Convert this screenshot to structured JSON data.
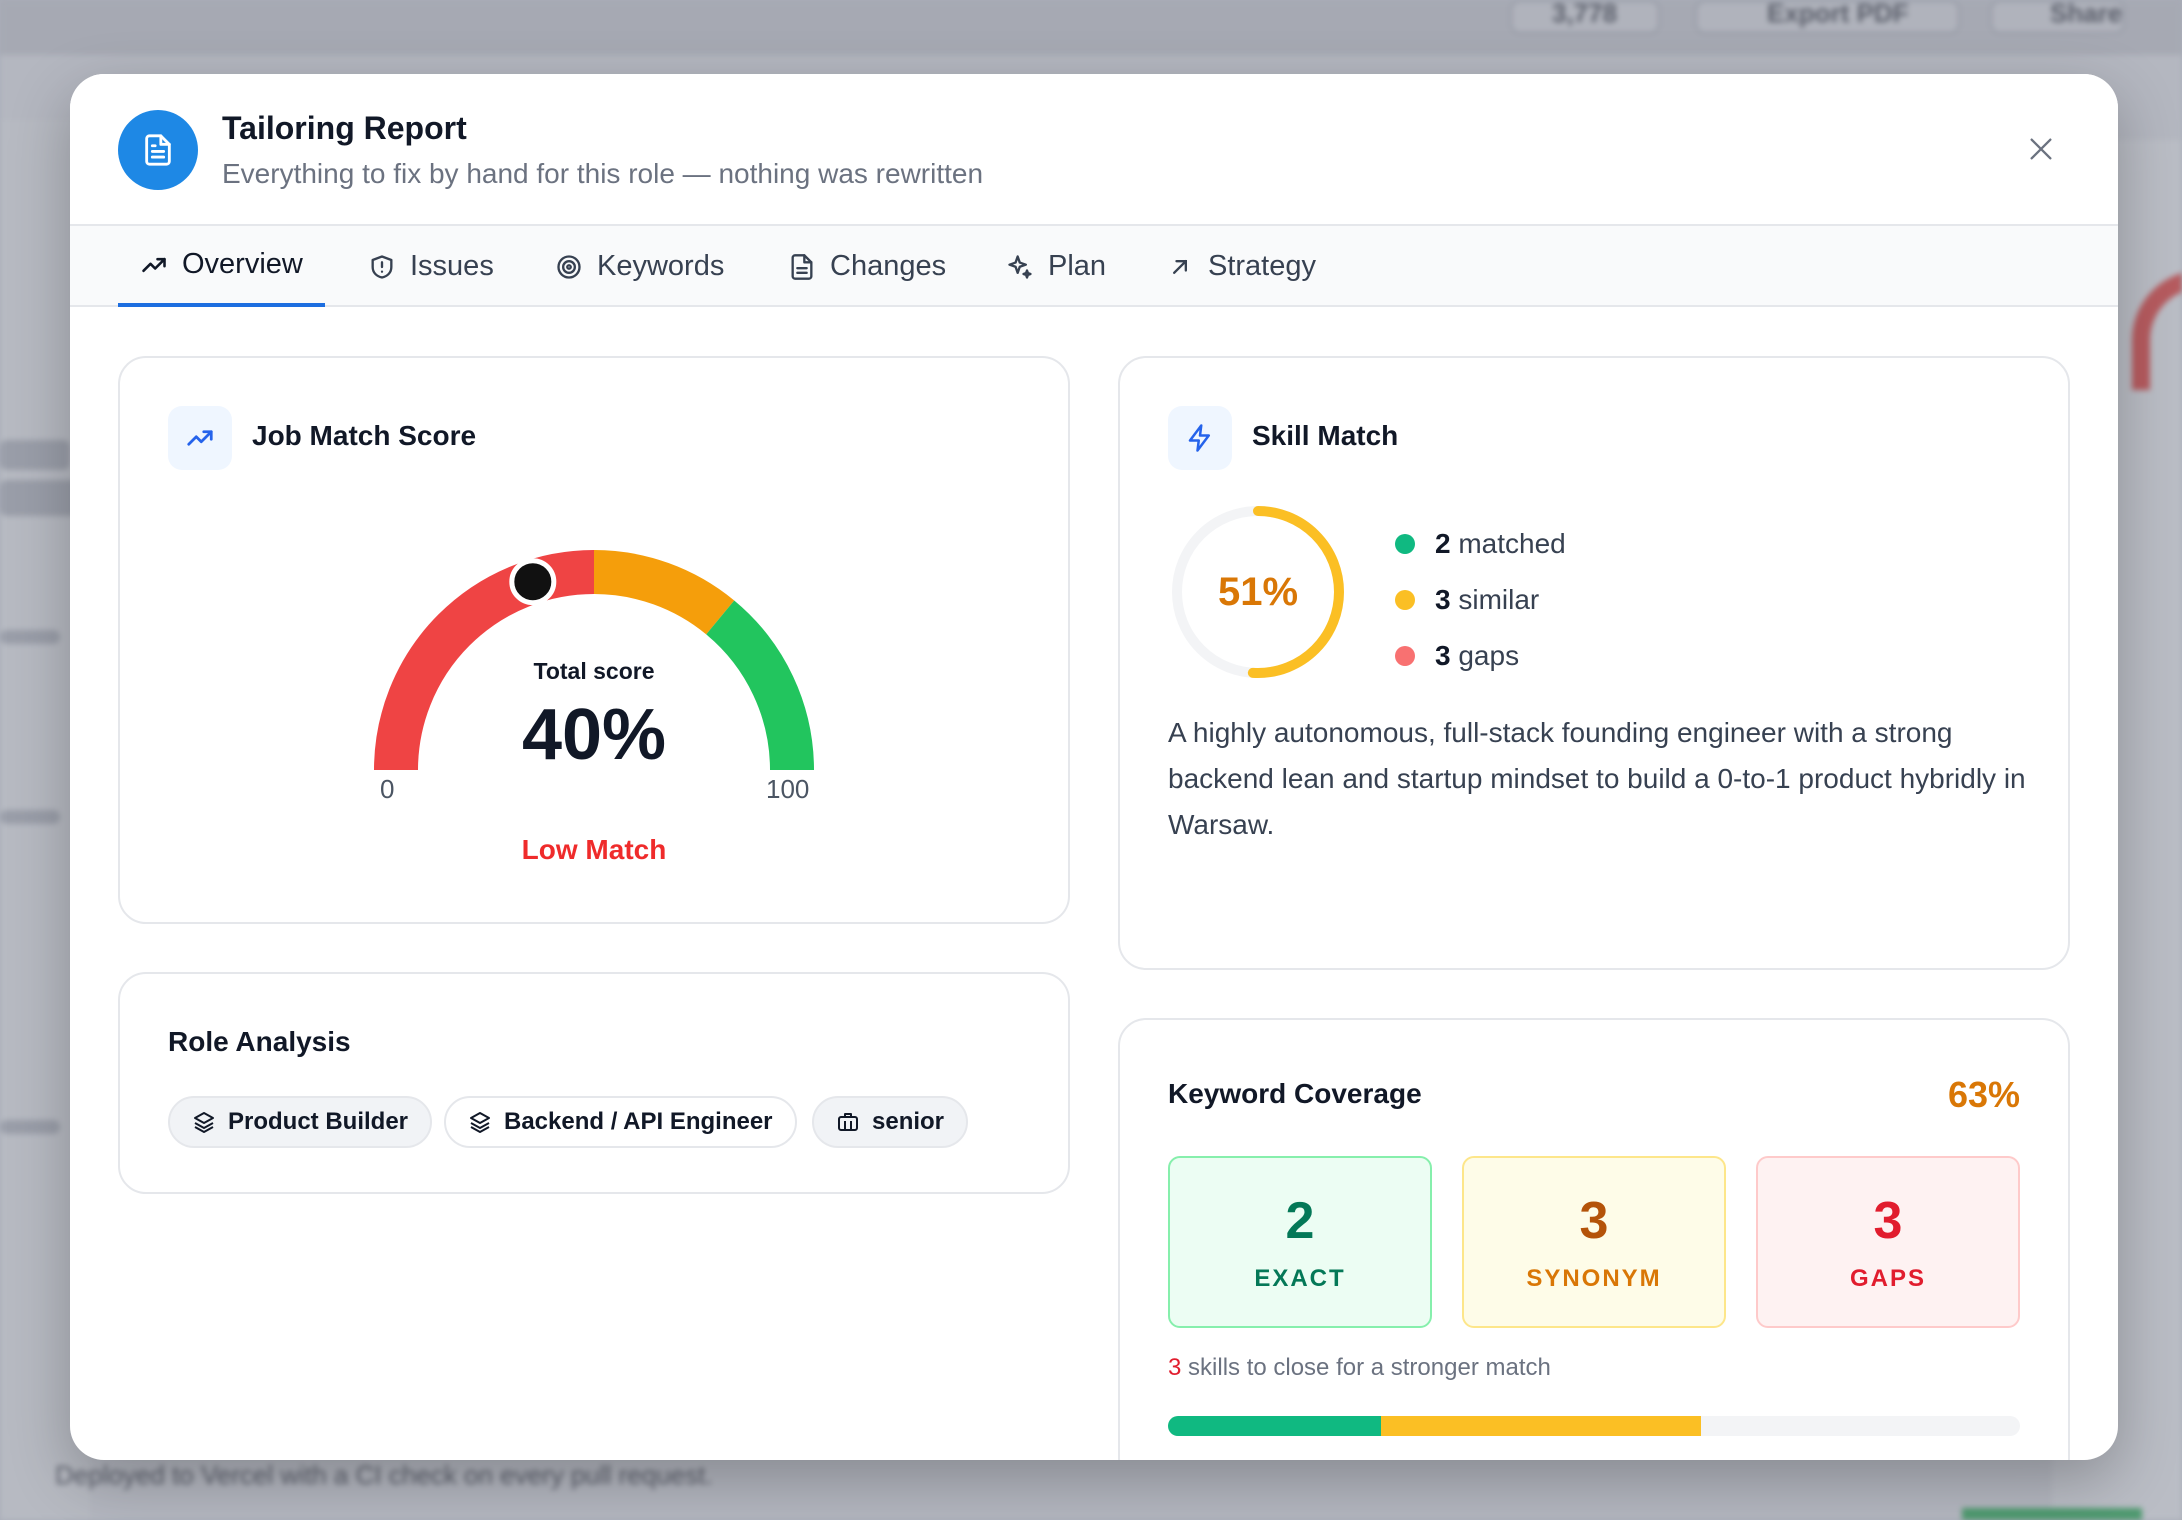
{
  "modal": {
    "title": "Tailoring Report",
    "subtitle": "Everything to fix by hand for this role — nothing was rewritten"
  },
  "tabs": [
    {
      "label": "Overview",
      "icon": "trending-up-icon",
      "active": true
    },
    {
      "label": "Issues",
      "icon": "shield-icon"
    },
    {
      "label": "Keywords",
      "icon": "target-icon"
    },
    {
      "label": "Changes",
      "icon": "document-icon"
    },
    {
      "label": "Plan",
      "icon": "sparkles-icon"
    },
    {
      "label": "Strategy",
      "icon": "arrow-up-right-icon"
    }
  ],
  "job_match": {
    "title": "Job Match Score",
    "total_label": "Total score",
    "score_text": "40%",
    "score_value": 40,
    "min_label": "0",
    "max_label": "100",
    "match_label": "Low Match",
    "segments": [
      {
        "from": 0,
        "to": 50,
        "color": "#ef4444"
      },
      {
        "from": 50,
        "to": 72,
        "color": "#f59e0b"
      },
      {
        "from": 72,
        "to": 100,
        "color": "#22c55e"
      }
    ]
  },
  "skill_match": {
    "title": "Skill Match",
    "percent_text": "51%",
    "percent_value": 51,
    "legend": [
      {
        "count": "2",
        "label": "matched",
        "color": "#10b981"
      },
      {
        "count": "3",
        "label": "similar",
        "color": "#fbbf24"
      },
      {
        "count": "3",
        "label": "gaps",
        "color": "#f87171"
      }
    ],
    "summary": "A highly autonomous, full-stack founding engineer with a strong backend lean and startup mindset to build a 0-to-1 product hybridly in Warsaw."
  },
  "role_analysis": {
    "title": "Role Analysis",
    "badges": [
      {
        "label": "Product Builder",
        "icon": "layers-icon"
      },
      {
        "label": "Backend / API Engineer",
        "icon": "layers-icon"
      },
      {
        "label": "senior",
        "icon": "briefcase-icon"
      }
    ]
  },
  "keyword_coverage": {
    "title": "Keyword Coverage",
    "percent_text": "63%",
    "boxes": [
      {
        "value": "2",
        "label": "EXACT"
      },
      {
        "value": "3",
        "label": "SYNONYM"
      },
      {
        "value": "3",
        "label": "GAPS"
      }
    ],
    "hint_count": "3",
    "hint_text": " skills to close for a stronger match",
    "progress": {
      "exact_fraction": 0.25,
      "synonym_fraction": 0.375
    }
  },
  "background": {
    "top_count": "3,778",
    "export_label": "Export PDF",
    "share_label": "Share",
    "footer_text": "Deployed to Vercel with a CI check on every pull request."
  }
}
